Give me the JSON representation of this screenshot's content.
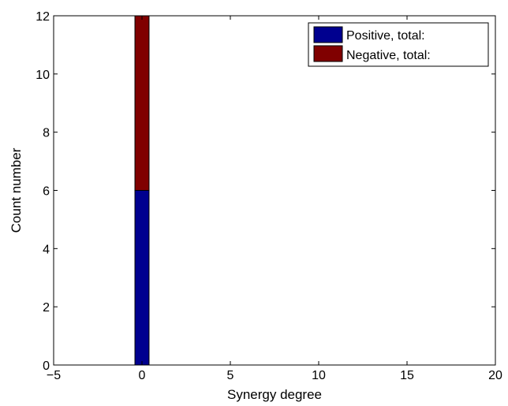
{
  "chart_data": {
    "type": "bar",
    "stacked": true,
    "xlabel": "Synergy degree",
    "ylabel": "Count number",
    "xlim": [
      -5,
      20
    ],
    "ylim": [
      0,
      12
    ],
    "xticks": [
      -5,
      0,
      5,
      10,
      15,
      20
    ],
    "yticks": [
      0,
      2,
      4,
      6,
      8,
      10,
      12
    ],
    "xtick_labels": [
      "−5",
      "0",
      "5",
      "10",
      "15",
      "20"
    ],
    "ytick_labels": [
      "0",
      "2",
      "4",
      "6",
      "8",
      "10",
      "12"
    ],
    "grid": false,
    "legend_position": "top-right",
    "x": [
      0
    ],
    "bar_width": 0.8,
    "series": [
      {
        "name": "Positive, total:",
        "color": "#00008f",
        "values": [
          6
        ]
      },
      {
        "name": "Negative, total:",
        "color": "#800000",
        "values": [
          6
        ]
      }
    ]
  }
}
